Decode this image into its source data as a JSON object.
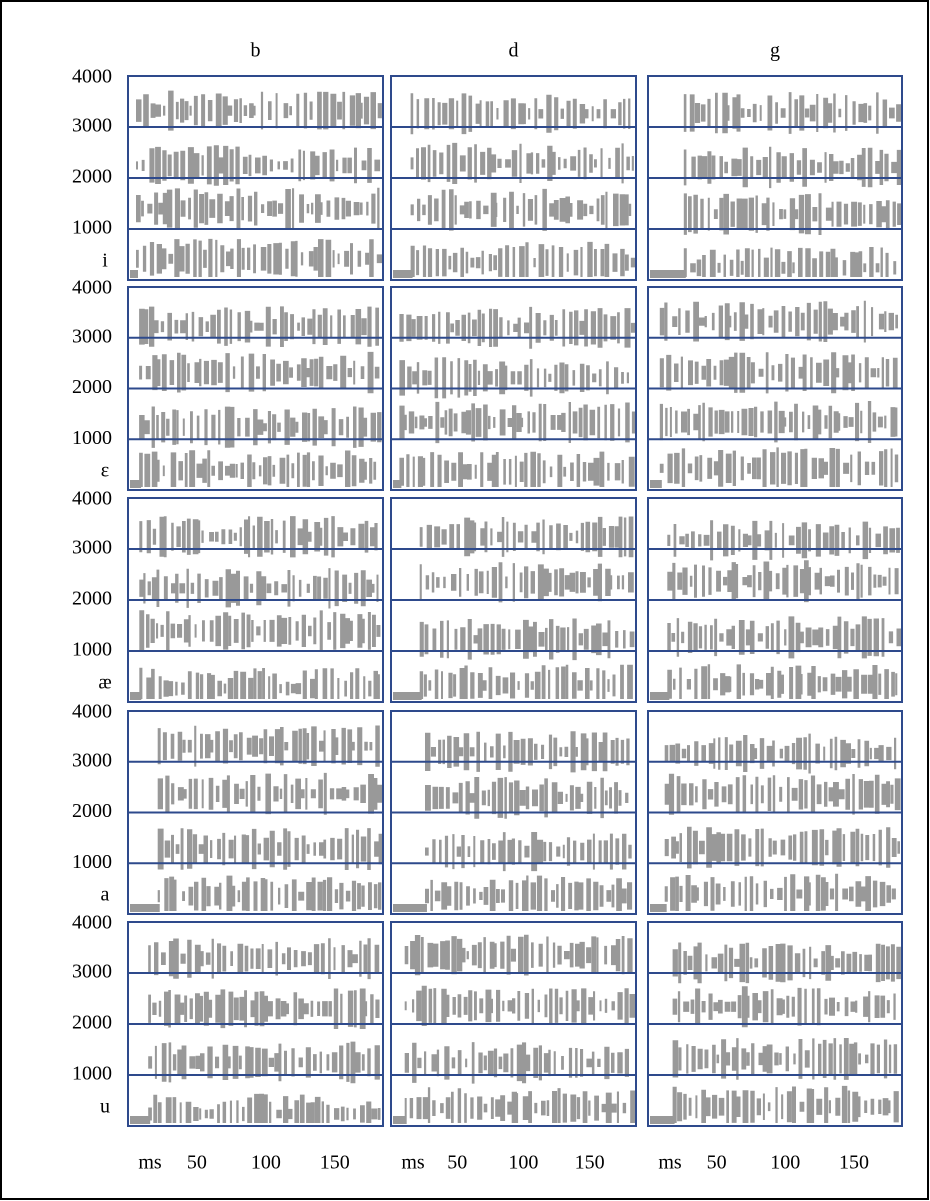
{
  "chart_data": {
    "type": "spectrogram-grid",
    "columns": [
      "b",
      "d",
      "g"
    ],
    "rows": [
      "i",
      "ε",
      "æ",
      "a",
      "u"
    ],
    "ylim": [
      0,
      4000
    ],
    "yticks": [
      1000,
      2000,
      3000,
      4000
    ],
    "xlim": [
      0,
      185
    ],
    "xticks": [
      50,
      100,
      150
    ],
    "xlabel": "ms",
    "grid": true,
    "color": "#999999",
    "grid_color": "#2e4a8c"
  }
}
